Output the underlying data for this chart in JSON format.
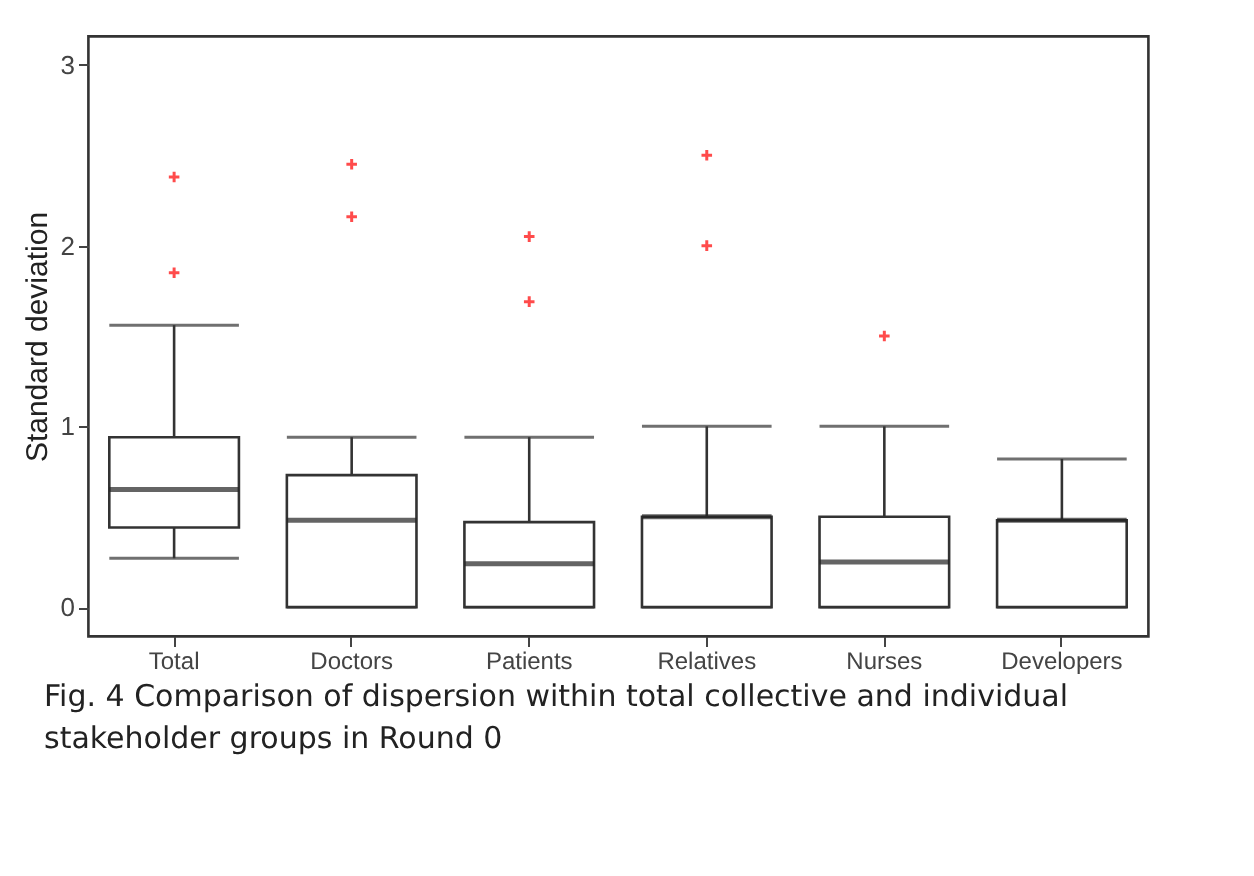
{
  "chart_data": {
    "type": "box",
    "ylabel": "Standard deviation",
    "categories": [
      "Total",
      "Doctors",
      "Patients",
      "Relatives",
      "Nurses",
      "Developers"
    ],
    "boxes": [
      {
        "low": 0.27,
        "q1": 0.44,
        "median": 0.65,
        "q3": 0.94,
        "high": 1.56,
        "outliers": [
          2.38,
          1.85
        ]
      },
      {
        "low": 0,
        "q1": 0,
        "median": 0.48,
        "q3": 0.73,
        "high": 0.94,
        "outliers": [
          2.45,
          2.16
        ]
      },
      {
        "low": 0,
        "q1": 0,
        "median": 0.24,
        "q3": 0.47,
        "high": 0.94,
        "outliers": [
          2.05,
          1.69
        ]
      },
      {
        "low": 0,
        "q1": 0,
        "median": 0.5,
        "q3": 0.5,
        "high": 1.0,
        "outliers": [
          2.5,
          2.0
        ]
      },
      {
        "low": 0,
        "q1": 0,
        "median": 0.25,
        "q3": 0.5,
        "high": 1.0,
        "outliers": [
          1.5
        ]
      },
      {
        "low": 0,
        "q1": 0,
        "median": 0.48,
        "q3": 0.48,
        "high": 0.82
      }
    ],
    "ylim": [
      -0.16,
      3.16
    ],
    "yticks": [
      0,
      1,
      2,
      3
    ],
    "grid": false,
    "annotations": [
      "Fig. 4 Comparison of dispersion within total collective and individual stakeholder groups in Round 0"
    ]
  }
}
